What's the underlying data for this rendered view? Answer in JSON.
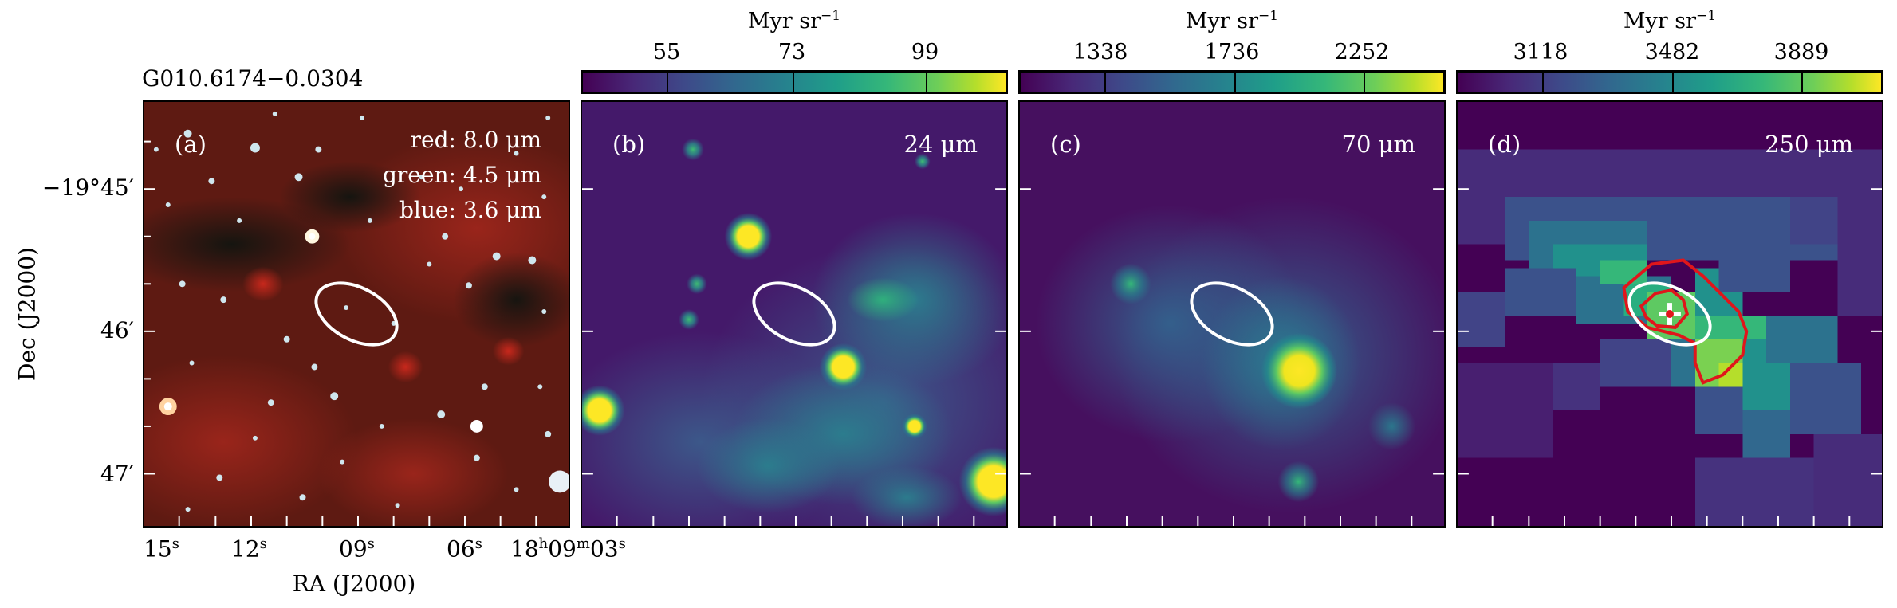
{
  "figure": {
    "source_name": "G010.6174−0.0304",
    "x_axis_label": "RA (J2000)",
    "y_axis_label": "Dec (J2000)",
    "ra_ticks": [
      "15",
      "12",
      "09",
      "06",
      "18",
      "03"
    ],
    "ra_tick_suffix": "s",
    "ra_hour_label": "h",
    "ra_minute_value": "09",
    "ra_minute_label": "m",
    "dec_ticks": [
      "−19°45′",
      "46′",
      "47′"
    ]
  },
  "panels": [
    {
      "label": "(a)",
      "legend": [
        "red: 8.0 μm",
        "green: 4.5 μm",
        "blue: 3.6 μm"
      ],
      "image": "three-color IRAC composite"
    },
    {
      "label": "(b)",
      "wavelength": "24 μm",
      "colorbar": {
        "unit": "Myr sr",
        "unit_exp": "−1",
        "ticks": [
          "55",
          "73",
          "99"
        ]
      }
    },
    {
      "label": "(c)",
      "wavelength": "70 μm",
      "colorbar": {
        "unit": "Myr sr",
        "unit_exp": "−1",
        "ticks": [
          "1338",
          "1736",
          "2252"
        ]
      }
    },
    {
      "label": "(d)",
      "wavelength": "250 μm",
      "colorbar": {
        "unit": "Myr sr",
        "unit_exp": "−1",
        "ticks": [
          "3118",
          "3482",
          "3889"
        ]
      }
    }
  ],
  "colors": {
    "ellipse": "#ffffff",
    "contour": "#e0161b",
    "colormap": "viridis"
  }
}
